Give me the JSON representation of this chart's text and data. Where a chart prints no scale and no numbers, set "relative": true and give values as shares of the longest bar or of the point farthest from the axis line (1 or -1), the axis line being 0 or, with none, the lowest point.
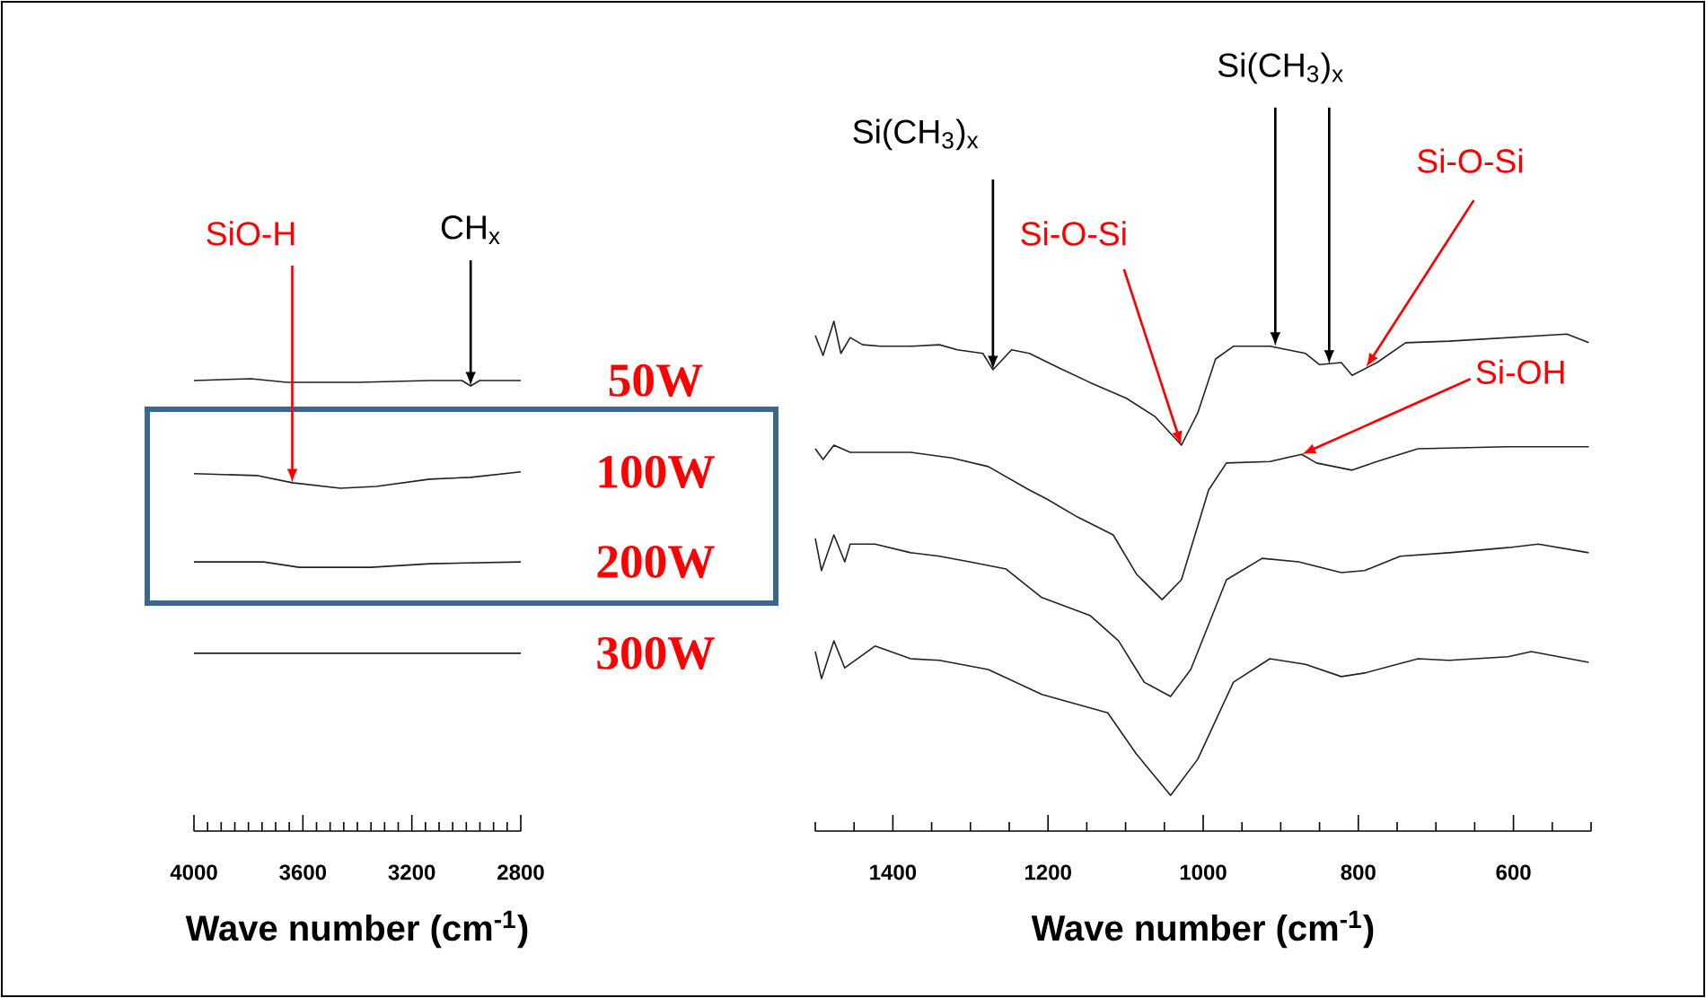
{
  "chart_data": [
    {
      "type": "line",
      "relative": true,
      "xlabel": "Wave number (cm$^{-1}$)",
      "xlim": [
        4000,
        2800
      ],
      "xticks": [
        4000,
        {
          "value": 3950,
          "label": null
        },
        {
          "value": 3900,
          "label": null
        },
        {
          "value": 3850,
          "label": null
        },
        {
          "value": 3800,
          "label": null
        },
        {
          "value": 3750,
          "label": null
        },
        {
          "value": 3700,
          "label": null
        },
        {
          "value": 3650,
          "label": null
        },
        3600,
        {
          "value": 3550,
          "label": null
        },
        {
          "value": 3500,
          "label": null
        },
        {
          "value": 3450,
          "label": null
        },
        {
          "value": 3400,
          "label": null
        },
        {
          "value": 3350,
          "label": null
        },
        {
          "value": 3300,
          "label": null
        },
        {
          "value": 3250,
          "label": null
        },
        3200,
        {
          "value": 3150,
          "label": null
        },
        {
          "value": 3100,
          "label": null
        },
        {
          "value": 3050,
          "label": null
        },
        {
          "value": 3000,
          "label": null
        },
        {
          "value": 2950,
          "label": null
        },
        {
          "value": 2900,
          "label": null
        },
        {
          "value": 2850,
          "label": null
        },
        2800
      ],
      "tick_labels": "x",
      "legend": false,
      "marker": "none",
      "line_style": "solid",
      "series": [
        {
          "name": "50W",
          "color": "#222222",
          "x": [
            4000,
            3790,
            3659,
            3397,
            3134,
            3016,
            2984,
            2951,
            2800
          ],
          "values": [
            0.996,
            1.0,
            0.992,
            0.992,
            0.996,
            0.996,
            0.984,
            0.996,
            0.996
          ]
        },
        {
          "name": "100W",
          "color": "#222222",
          "x": [
            4000,
            3770,
            3639,
            3462,
            3331,
            3134,
            2984,
            2800
          ],
          "values": [
            0.79,
            0.786,
            0.77,
            0.758,
            0.762,
            0.778,
            0.782,
            0.794
          ]
        },
        {
          "name": "200W",
          "color": "#222222",
          "x": [
            4000,
            3744,
            3613,
            3351,
            3134,
            2800
          ],
          "values": [
            0.595,
            0.595,
            0.583,
            0.583,
            0.591,
            0.595
          ]
        },
        {
          "name": "300W",
          "color": "#222222",
          "x": [
            4000,
            3600,
            2800
          ],
          "values": [
            0.393,
            0.393,
            0.393
          ]
        }
      ],
      "annotations": [
        {
          "text": "CH$_{x}$",
          "x": 2984,
          "y": 0.984
        },
        {
          "text": "SiO-H",
          "x": 3639,
          "y": 0.77
        }
      ]
    },
    {
      "type": "line",
      "relative": true,
      "xlabel": "Wave number (cm$^{-1}$)",
      "xlim": [
        1500,
        500
      ],
      "xticks": [
        {
          "value": 1500,
          "label": null
        },
        {
          "value": 1450,
          "label": null
        },
        1400,
        {
          "value": 1350,
          "label": null
        },
        {
          "value": 1300,
          "label": null
        },
        {
          "value": 1250,
          "label": null
        },
        1200,
        {
          "value": 1150,
          "label": null
        },
        {
          "value": 1100,
          "label": null
        },
        {
          "value": 1050,
          "label": null
        },
        1000,
        {
          "value": 950,
          "label": null
        },
        {
          "value": 900,
          "label": null
        },
        {
          "value": 850,
          "label": null
        },
        800,
        {
          "value": 750,
          "label": null
        },
        {
          "value": 700,
          "label": null
        },
        {
          "value": 650,
          "label": null
        },
        600,
        {
          "value": 550,
          "label": null
        },
        {
          "value": 500,
          "label": null
        }
      ],
      "tick_labels": "x",
      "legend": false,
      "marker": "none",
      "line_style": "solid",
      "series": [
        {
          "color": "#222222",
          "x": [
            1500,
            1490,
            1476,
            1467,
            1455,
            1439,
            1416,
            1377,
            1340,
            1317,
            1284,
            1271,
            1247,
            1224,
            1185,
            1146,
            1099,
            1062,
            1028,
            1007,
            984,
            961,
            914,
            868,
            850,
            822,
            808,
            776,
            739,
            683,
            607,
            531,
            503
          ],
          "values": [
            0.972,
            0.933,
            1.0,
            0.937,
            0.968,
            0.954,
            0.951,
            0.951,
            0.954,
            0.944,
            0.937,
            0.905,
            0.944,
            0.937,
            0.908,
            0.88,
            0.849,
            0.813,
            0.757,
            0.82,
            0.926,
            0.951,
            0.951,
            0.937,
            0.915,
            0.919,
            0.894,
            0.919,
            0.958,
            0.961,
            0.968,
            0.975,
            0.958
          ]
        },
        {
          "color": "#222222",
          "x": [
            1500,
            1490,
            1476,
            1455,
            1377,
            1324,
            1277,
            1224,
            1201,
            1162,
            1116,
            1086,
            1053,
            1028,
            993,
            970,
            914,
            873,
            854,
            808,
            776,
            723,
            607,
            503
          ],
          "values": [
            0.75,
            0.729,
            0.757,
            0.743,
            0.743,
            0.732,
            0.715,
            0.669,
            0.651,
            0.616,
            0.581,
            0.504,
            0.454,
            0.493,
            0.669,
            0.722,
            0.725,
            0.739,
            0.722,
            0.708,
            0.725,
            0.75,
            0.754,
            0.754
          ]
        },
        {
          "color": "#222222",
          "x": [
            1500,
            1492,
            1476,
            1462,
            1455,
            1423,
            1377,
            1340,
            1301,
            1254,
            1208,
            1146,
            1109,
            1076,
            1042,
            1016,
            970,
            924,
            877,
            822,
            792,
            746,
            683,
            607,
            568,
            503
          ],
          "values": [
            0.574,
            0.511,
            0.581,
            0.528,
            0.563,
            0.563,
            0.546,
            0.539,
            0.528,
            0.514,
            0.458,
            0.423,
            0.373,
            0.292,
            0.264,
            0.317,
            0.493,
            0.535,
            0.528,
            0.507,
            0.511,
            0.539,
            0.546,
            0.556,
            0.563,
            0.546
          ]
        },
        {
          "color": "#222222",
          "x": [
            1500,
            1492,
            1476,
            1462,
            1423,
            1377,
            1340,
            1277,
            1208,
            1123,
            1086,
            1042,
            1007,
            961,
            914,
            868,
            822,
            792,
            723,
            683,
            607,
            577,
            503
          ],
          "values": [
            0.352,
            0.299,
            0.373,
            0.32,
            0.363,
            0.338,
            0.335,
            0.317,
            0.268,
            0.232,
            0.151,
            0.07,
            0.141,
            0.292,
            0.338,
            0.327,
            0.303,
            0.31,
            0.338,
            0.335,
            0.342,
            0.352,
            0.331
          ]
        }
      ],
      "annotations": [
        {
          "text": "Si(CH$_{3}$)$_{x}$",
          "x": 1271,
          "y": 0.905
        },
        {
          "text": "Si-O-Si",
          "x": 1028,
          "y": 0.757
        },
        {
          "text": "Si(CH$_{3}$)$_{x}$",
          "x": 907,
          "y": 0.951
        },
        {
          "text": "Si-O-Si",
          "x": 790,
          "y": 0.91
        },
        {
          "text": "Si-OH",
          "x": 873,
          "y": 0.739
        }
      ]
    }
  ]
}
